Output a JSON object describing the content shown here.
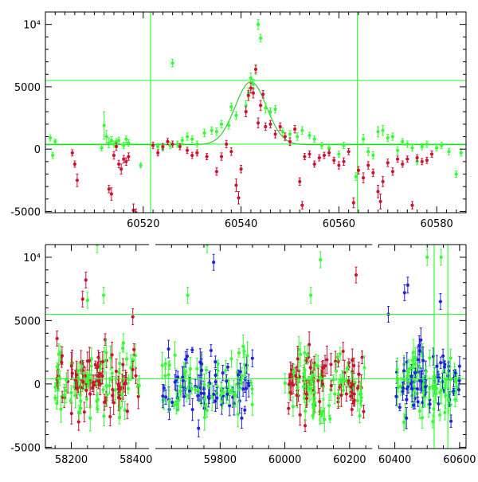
{
  "chart_data": [
    {
      "type": "scatter",
      "panel": "top",
      "title": "",
      "xlabel": "",
      "ylabel": "",
      "xlim": [
        60500,
        60586
      ],
      "ylim": [
        -5100,
        11000
      ],
      "xticks": [
        60520,
        60540,
        60560,
        60580
      ],
      "yticks": [
        {
          "v": -5000,
          "label": "-5000"
        },
        {
          "v": 0,
          "label": "0"
        },
        {
          "v": 5000,
          "label": "5000"
        },
        {
          "v": 10000,
          "label": "10⁴"
        }
      ],
      "hlines": [
        400,
        5500
      ],
      "vlines": [
        60521.5,
        60563.8
      ],
      "model_curve": {
        "peak_x": 60542,
        "peak_y": 5400,
        "baseline": 350,
        "sigma": 3.2
      },
      "series": [
        {
          "color": "#33ff33",
          "points": [
            [
              60501.0,
              900,
              250
            ],
            [
              60501.5,
              -500,
              250
            ],
            [
              60502.0,
              600,
              200
            ],
            [
              60511.5,
              100,
              250
            ],
            [
              60512.0,
              1900,
              1100
            ],
            [
              60512.5,
              1000,
              500
            ],
            [
              60513.0,
              500,
              400
            ],
            [
              60513.5,
              700,
              300
            ],
            [
              60514.0,
              400,
              250
            ],
            [
              60514.5,
              600,
              250
            ],
            [
              60515.0,
              700,
              250
            ],
            [
              60516.0,
              300,
              250
            ],
            [
              60516.5,
              800,
              250
            ],
            [
              60517.0,
              500,
              250
            ],
            [
              60519.5,
              -1300,
              200
            ],
            [
              60523.0,
              200,
              250
            ],
            [
              60524.0,
              100,
              250
            ],
            [
              60525.5,
              300,
              250
            ],
            [
              60526.0,
              6900,
              300
            ],
            [
              60527.0,
              400,
              250
            ],
            [
              60528.0,
              700,
              250
            ],
            [
              60529.0,
              1000,
              300
            ],
            [
              60530.0,
              800,
              250
            ],
            [
              60531.0,
              400,
              250
            ],
            [
              60532.5,
              1300,
              300
            ],
            [
              60534.0,
              1500,
              300
            ],
            [
              60535.0,
              1400,
              300
            ],
            [
              60536.0,
              2000,
              300
            ],
            [
              60537.5,
              1900,
              300
            ],
            [
              60538.0,
              3400,
              300
            ],
            [
              60539.0,
              2700,
              300
            ],
            [
              60541.0,
              3500,
              400
            ],
            [
              60541.5,
              4500,
              400
            ],
            [
              60542.0,
              5700,
              400
            ],
            [
              60542.5,
              5200,
              400
            ],
            [
              60543.0,
              6400,
              400
            ],
            [
              60543.5,
              10000,
              400
            ],
            [
              60544.0,
              8900,
              300
            ],
            [
              60545.0,
              3300,
              400
            ],
            [
              60546.0,
              3000,
              300
            ],
            [
              60547.0,
              3200,
              300
            ],
            [
              60548.5,
              1400,
              300
            ],
            [
              60550.0,
              1200,
              300
            ],
            [
              60551.5,
              1000,
              300
            ],
            [
              60552.5,
              1500,
              300
            ],
            [
              60554.0,
              1100,
              250
            ],
            [
              60555.0,
              800,
              250
            ],
            [
              60556.5,
              300,
              250
            ],
            [
              60558.0,
              100,
              250
            ],
            [
              60560.0,
              -400,
              250
            ],
            [
              60561.0,
              300,
              250
            ],
            [
              60563.5,
              -2200,
              300
            ],
            [
              60565.0,
              800,
              400
            ],
            [
              60566.0,
              -200,
              300
            ],
            [
              60567.0,
              -500,
              300
            ],
            [
              60568.0,
              1400,
              400
            ],
            [
              60569.0,
              1500,
              400
            ],
            [
              60570.0,
              900,
              300
            ],
            [
              60571.0,
              1000,
              300
            ],
            [
              60572.0,
              -100,
              300
            ],
            [
              60573.0,
              600,
              250
            ],
            [
              60574.0,
              400,
              250
            ],
            [
              60575.0,
              100,
              250
            ],
            [
              60576.0,
              -1000,
              250
            ],
            [
              60577.0,
              200,
              250
            ],
            [
              60578.0,
              400,
              250
            ],
            [
              60579.0,
              -400,
              250
            ],
            [
              60580.0,
              100,
              250
            ],
            [
              60581.0,
              300,
              250
            ],
            [
              60582.5,
              -200,
              250
            ],
            [
              60584.0,
              -2000,
              250
            ],
            [
              60585.0,
              -300,
              250
            ]
          ]
        },
        {
          "color": "#cc1133",
          "points": [
            [
              60505.5,
              -300,
              250
            ],
            [
              60506.0,
              -1200,
              250
            ],
            [
              60506.5,
              -2500,
              500
            ],
            [
              60513.0,
              -3200,
              300
            ],
            [
              60513.5,
              -3600,
              500
            ],
            [
              60514.0,
              -500,
              300
            ],
            [
              60514.5,
              200,
              300
            ],
            [
              60515.0,
              -1200,
              300
            ],
            [
              60515.5,
              -1600,
              400
            ],
            [
              60516.0,
              -800,
              300
            ],
            [
              60516.5,
              -1000,
              300
            ],
            [
              60517.0,
              -600,
              300
            ],
            [
              60518.0,
              -4900,
              500
            ],
            [
              60518.5,
              -5100,
              300
            ],
            [
              60522.0,
              300,
              250
            ],
            [
              60523.0,
              -300,
              250
            ],
            [
              60524.0,
              200,
              250
            ],
            [
              60525.0,
              600,
              250
            ],
            [
              60526.0,
              400,
              250
            ],
            [
              60527.5,
              200,
              250
            ],
            [
              60529.0,
              -100,
              250
            ],
            [
              60530.0,
              -500,
              250
            ],
            [
              60531.0,
              -300,
              250
            ],
            [
              60533.0,
              -600,
              250
            ],
            [
              60535.0,
              -1800,
              300
            ],
            [
              60536.0,
              -600,
              300
            ],
            [
              60537.0,
              400,
              300
            ],
            [
              60538.0,
              -200,
              300
            ],
            [
              60539.0,
              -2900,
              500
            ],
            [
              60539.5,
              -3900,
              500
            ],
            [
              60540.0,
              -1600,
              300
            ],
            [
              60541.0,
              3000,
              400
            ],
            [
              60541.5,
              4300,
              400
            ],
            [
              60542.0,
              4900,
              400
            ],
            [
              60542.5,
              4500,
              400
            ],
            [
              60543.0,
              6400,
              300
            ],
            [
              60543.5,
              2100,
              400
            ],
            [
              60544.0,
              3500,
              400
            ],
            [
              60544.5,
              4400,
              300
            ],
            [
              60545.0,
              1800,
              300
            ],
            [
              60546.0,
              2000,
              300
            ],
            [
              60547.0,
              1200,
              300
            ],
            [
              60548.0,
              1800,
              300
            ],
            [
              60549.0,
              1000,
              300
            ],
            [
              60550.0,
              600,
              300
            ],
            [
              60551.0,
              1600,
              300
            ],
            [
              60552.0,
              -2600,
              300
            ],
            [
              60552.5,
              -4500,
              300
            ],
            [
              60553.0,
              -600,
              250
            ],
            [
              60554.0,
              -400,
              250
            ],
            [
              60555.0,
              -1200,
              250
            ],
            [
              60556.0,
              -700,
              250
            ],
            [
              60557.0,
              -500,
              250
            ],
            [
              60558.0,
              -300,
              250
            ],
            [
              60559.0,
              -900,
              250
            ],
            [
              60560.0,
              -1300,
              300
            ],
            [
              60561.0,
              -1000,
              300
            ],
            [
              60562.0,
              -200,
              250
            ],
            [
              60563.0,
              -4300,
              400
            ],
            [
              60564.0,
              -1700,
              300
            ],
            [
              60565.0,
              -2300,
              400
            ],
            [
              60566.0,
              -1300,
              300
            ],
            [
              60567.0,
              -1900,
              300
            ],
            [
              60568.0,
              -3400,
              500
            ],
            [
              60568.5,
              -4200,
              600
            ],
            [
              60569.0,
              -2600,
              400
            ],
            [
              60570.0,
              -1100,
              300
            ],
            [
              60571.0,
              -1800,
              300
            ],
            [
              60572.0,
              -800,
              250
            ],
            [
              60573.0,
              -1200,
              250
            ],
            [
              60574.0,
              -800,
              250
            ],
            [
              60575.0,
              -4500,
              300
            ],
            [
              60576.0,
              -700,
              250
            ],
            [
              60577.0,
              -1000,
              250
            ],
            [
              60578.0,
              -900,
              250
            ],
            [
              60579.0,
              -400,
              250
            ]
          ]
        }
      ]
    },
    {
      "type": "scatter",
      "panel": "bottom",
      "title": "",
      "xlabel": "",
      "ylabel": "",
      "ylim": [
        -5100,
        11000
      ],
      "xticks": [
        58200,
        58400,
        59800,
        60000,
        60200,
        60400,
        60600
      ],
      "yticks": [
        {
          "v": -5000,
          "label": "-5000"
        },
        {
          "v": 0,
          "label": "0"
        },
        {
          "v": 5000,
          "label": "5000"
        },
        {
          "v": 10000,
          "label": "10⁴"
        }
      ],
      "hlines": [
        400,
        5500
      ],
      "vlines": [
        60521.5,
        60563.8
      ],
      "segments": [
        {
          "xlim": [
            58120,
            58440
          ]
        },
        {
          "xlim": [
            59600,
            60270
          ]
        },
        {
          "xlim": [
            60350,
            60620
          ]
        }
      ],
      "seasons": [
        {
          "range": [
            58150,
            58410
          ],
          "colors": [
            "#cc1133",
            "#33ff33"
          ],
          "n": 160,
          "seed": 11
        },
        {
          "range": [
            59620,
            59900
          ],
          "colors": [
            "#2222dd",
            "#33ff33"
          ],
          "n": 140,
          "seed": 23
        },
        {
          "range": [
            60000,
            60250
          ],
          "colors": [
            "#cc1133",
            "#33ff33"
          ],
          "n": 150,
          "seed": 37
        },
        {
          "range": [
            60400,
            60600
          ],
          "colors": [
            "#2222dd",
            "#33ff33"
          ],
          "n": 140,
          "seed": 51
        }
      ],
      "highlights": [
        [
          58235,
          6700,
          "#cc1133"
        ],
        [
          58245,
          8200,
          "#cc1133"
        ],
        [
          58250,
          6600,
          "#33ff33"
        ],
        [
          58280,
          11000,
          "#33ff33"
        ],
        [
          58300,
          7000,
          "#33ff33"
        ],
        [
          58390,
          5300,
          "#cc1133"
        ],
        [
          59700,
          7000,
          "#33ff33"
        ],
        [
          59780,
          9600,
          "#2222dd"
        ],
        [
          59760,
          11000,
          "#33ff33"
        ],
        [
          60110,
          9800,
          "#33ff33"
        ],
        [
          60080,
          7000,
          "#33ff33"
        ],
        [
          60220,
          8600,
          "#cc1133"
        ],
        [
          60430,
          7200,
          "#2222dd"
        ],
        [
          60440,
          7800,
          "#2222dd"
        ],
        [
          60500,
          10000,
          "#33ff33"
        ],
        [
          60541,
          6500,
          "#2222dd"
        ],
        [
          60543,
          10000,
          "#33ff33"
        ],
        [
          60380,
          5500,
          "#2222dd"
        ]
      ]
    }
  ]
}
